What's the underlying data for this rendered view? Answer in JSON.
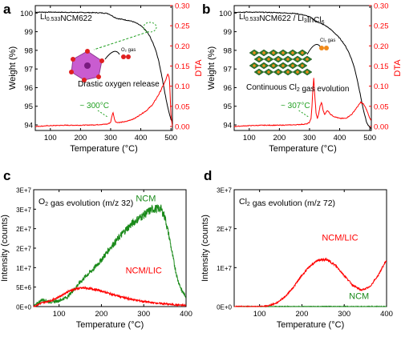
{
  "colors": {
    "black": "#000000",
    "red": "#ff0000",
    "green": "#1a8a1a",
    "noise_green": "#2e9a2e",
    "anno_green": "#22a022"
  },
  "chart_data": [
    {
      "panel_label": "a",
      "type": "line",
      "title": "",
      "annotation_label_sub": {
        "prefix": "Li",
        "sub": "0.533",
        "suffix": "NCM622"
      },
      "annotation_text": "Drastic oxygen release",
      "annotation_temp": "~ 300°C",
      "gas_label": "O₂ gas",
      "icon_name": "oxygen-release-crystal-icon",
      "xlabel": "Temperature (°C)",
      "ylabel": "Weight (%)",
      "y2label": "DTA",
      "xlim": [
        50,
        505
      ],
      "ylim": [
        93.7,
        100.4
      ],
      "y2lim": [
        -0.01,
        0.3
      ],
      "xticks": [
        "100",
        "200",
        "300",
        "400",
        "500"
      ],
      "yticks": [
        "94",
        "95",
        "96",
        "97",
        "98",
        "99",
        "100"
      ],
      "y2ticks": [
        "0.00",
        "0.05",
        "0.10",
        "0.15",
        "0.20",
        "0.25",
        "0.30"
      ],
      "series": [
        {
          "axis": "left",
          "color": "#000000",
          "x": [
            50,
            100,
            150,
            200,
            250,
            280,
            290,
            300,
            310,
            320,
            330,
            340,
            350,
            360,
            370,
            380,
            390,
            400,
            410,
            420,
            430,
            440,
            450,
            460,
            470,
            480,
            490,
            500,
            505
          ],
          "y": [
            100.05,
            100.05,
            100.04,
            100.03,
            100.02,
            100.0,
            99.98,
            99.9,
            99.8,
            99.72,
            99.68,
            99.66,
            99.63,
            99.6,
            99.56,
            99.5,
            99.42,
            99.32,
            99.18,
            99.0,
            98.75,
            98.4,
            98.0,
            97.4,
            96.6,
            95.7,
            94.9,
            94.3,
            94.15
          ]
        },
        {
          "axis": "right",
          "color": "#ff0000",
          "x": [
            50,
            100,
            150,
            200,
            250,
            290,
            300,
            304,
            308,
            312,
            316,
            320,
            330,
            350,
            380,
            400,
            420,
            440,
            460,
            470,
            480,
            490,
            495,
            500,
            505
          ],
          "y": [
            0.0,
            0.002,
            0.003,
            0.003,
            0.004,
            0.006,
            0.01,
            0.025,
            0.035,
            0.02,
            0.012,
            0.01,
            0.01,
            0.012,
            0.02,
            0.03,
            0.04,
            0.055,
            0.08,
            0.095,
            0.11,
            0.13,
            0.12,
            0.03,
            0.0
          ]
        }
      ]
    },
    {
      "panel_label": "b",
      "type": "line",
      "title": "",
      "annotation_label_sub": {
        "prefix": "Li",
        "sub": "0.533",
        "mid": "NCM622 / Li",
        "sub2": "3",
        "suffix": "InCl",
        "sub3": "6"
      },
      "annotation_text_parts": {
        "before": "Continuous Cl",
        "sub": "2",
        "after": " gas evolution"
      },
      "annotation_temp": "~ 307°C",
      "gas_label": "Cl₂ gas",
      "icon_name": "chlorine-release-crystal-icon",
      "xlabel": "Temperature (°C)",
      "ylabel": "Weight (%)",
      "y2label": "DTA",
      "xlim": [
        50,
        505
      ],
      "ylim": [
        93.7,
        100.4
      ],
      "y2lim": [
        -0.01,
        0.3
      ],
      "xticks": [
        "100",
        "200",
        "300",
        "400",
        "500"
      ],
      "yticks": [
        "94",
        "95",
        "96",
        "97",
        "98",
        "99",
        "100"
      ],
      "y2ticks": [
        "0.00",
        "0.05",
        "0.10",
        "0.15",
        "0.20",
        "0.25",
        "0.30"
      ],
      "series": [
        {
          "axis": "left",
          "color": "#000000",
          "x": [
            50,
            100,
            150,
            200,
            250,
            280,
            300,
            310,
            320,
            330,
            340,
            350,
            360,
            370,
            380,
            390,
            400,
            410,
            420,
            430,
            440,
            450,
            460,
            470,
            480,
            490,
            500,
            505
          ],
          "y": [
            100.05,
            100.05,
            100.04,
            100.02,
            99.98,
            99.9,
            99.8,
            99.7,
            99.58,
            99.5,
            99.42,
            99.35,
            99.25,
            99.12,
            98.98,
            98.82,
            98.65,
            98.45,
            98.2,
            97.9,
            97.5,
            97.0,
            96.3,
            95.5,
            94.7,
            94.1,
            93.85,
            93.8
          ]
        },
        {
          "axis": "right",
          "color": "#ff0000",
          "x": [
            50,
            100,
            150,
            200,
            250,
            290,
            300,
            305,
            308,
            311,
            314,
            318,
            322,
            326,
            330,
            335,
            340,
            345,
            350,
            360,
            370,
            380,
            400,
            420,
            440,
            460,
            470,
            480,
            490,
            500,
            505
          ],
          "y": [
            0.0,
            0.002,
            0.003,
            0.003,
            0.004,
            0.006,
            0.01,
            0.02,
            0.05,
            0.09,
            0.12,
            0.07,
            0.03,
            0.02,
            0.03,
            0.05,
            0.06,
            0.04,
            0.03,
            0.04,
            0.03,
            0.025,
            0.02,
            0.02,
            0.03,
            0.05,
            0.06,
            0.055,
            0.04,
            0.02,
            0.015
          ]
        }
      ]
    },
    {
      "panel_label": "c",
      "type": "line",
      "title_parts": {
        "before": "O",
        "sub": "2",
        "after": " gas evolution (m/z 32)"
      },
      "xlabel": "Temperature (°C)",
      "ylabel": "Intensity (counts)",
      "xlim": [
        40,
        400
      ],
      "ylim": [
        0,
        30000000
      ],
      "xticks": [
        "100",
        "200",
        "300",
        "400"
      ],
      "yticks": [
        "0E+0",
        "5E+6",
        "1E+7",
        "2E+7",
        "2E+7",
        "3E+7",
        "3E+7"
      ],
      "series": [
        {
          "name": "NCM",
          "color": "#1a8a1a",
          "x": [
            40,
            60,
            80,
            100,
            120,
            140,
            160,
            180,
            200,
            220,
            240,
            260,
            280,
            300,
            320,
            340,
            350,
            360,
            370,
            380,
            390,
            400
          ],
          "y": [
            0,
            1800000,
            1200000,
            1500000,
            2500000,
            5000000,
            7500000,
            9500000,
            12000000,
            15000000,
            17500000,
            20000000,
            22000000,
            23500000,
            25000000,
            25200000,
            23000000,
            18000000,
            12000000,
            7000000,
            4000000,
            2500000
          ]
        },
        {
          "name": "NCM/LIC",
          "color": "#ff0000",
          "x": [
            40,
            60,
            80,
            100,
            120,
            140,
            160,
            180,
            200,
            220,
            240,
            260,
            280,
            300,
            320,
            340,
            360,
            380,
            400
          ],
          "y": [
            0,
            1000000,
            1500000,
            2500000,
            3800000,
            4600000,
            4800000,
            4500000,
            4000000,
            3300000,
            2700000,
            2100000,
            1700000,
            1300000,
            1000000,
            800000,
            600000,
            400000,
            300000
          ]
        }
      ]
    },
    {
      "panel_label": "d",
      "type": "line",
      "title_parts": {
        "before": "Cl",
        "sub": "2",
        "after": " gas evolution (m/z 72)"
      },
      "xlabel": "Temperature (°C)",
      "ylabel": "Intensity (counts)",
      "xlim": [
        40,
        400
      ],
      "ylim": [
        0,
        30000000
      ],
      "xticks": [
        "100",
        "200",
        "300",
        "400"
      ],
      "yticks": [
        "0E+0",
        "1E+7",
        "2E+7",
        "3E+7"
      ],
      "series": [
        {
          "name": "NCM/LIC",
          "color": "#ff0000",
          "x": [
            40,
            80,
            100,
            120,
            140,
            160,
            180,
            200,
            220,
            240,
            260,
            280,
            300,
            320,
            340,
            360,
            380,
            400
          ],
          "y": [
            0,
            0,
            0,
            200000,
            900000,
            2500000,
            5000000,
            8000000,
            10500000,
            12000000,
            12000000,
            10500000,
            8000000,
            5500000,
            4200000,
            5000000,
            8000000,
            12000000
          ]
        },
        {
          "name": "NCM",
          "color": "#1a8a1a",
          "x": [
            40,
            400
          ],
          "y": [
            0,
            0
          ]
        }
      ]
    }
  ]
}
